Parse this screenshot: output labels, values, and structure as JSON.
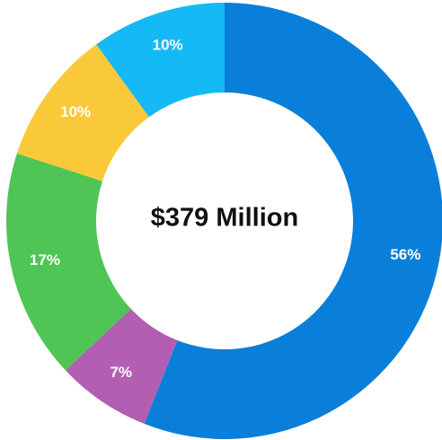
{
  "chart_data": {
    "type": "pie",
    "style": "donut",
    "center_label": "$379 Million",
    "slices": [
      {
        "value": 56,
        "label": "56%",
        "color": "#0a7fd9"
      },
      {
        "value": 7,
        "label": "7%",
        "color": "#b15eb3"
      },
      {
        "value": 17,
        "label": "17%",
        "color": "#4fc556"
      },
      {
        "value": 10,
        "label": "10%",
        "color": "#fac93a"
      },
      {
        "value": 10,
        "label": "10%",
        "color": "#14b9f5"
      }
    ],
    "start_angle_deg": 0,
    "direction": "clockwise",
    "legend": "none"
  }
}
